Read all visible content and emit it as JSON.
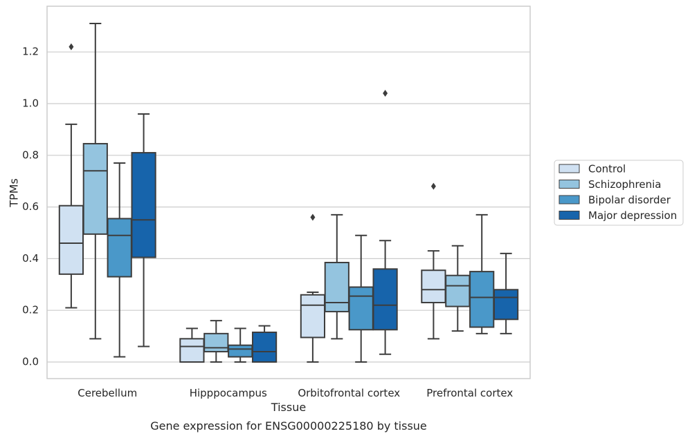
{
  "chart_data": {
    "type": "box",
    "xlabel": "Tissue",
    "ylabel": "TPMs",
    "caption": "Gene expression for ENSG00000225180 by tissue",
    "ylim": [
      -0.065,
      1.385
    ],
    "y_ticks": [
      "0.0",
      "0.2",
      "0.4",
      "0.6",
      "0.8",
      "1.0",
      "1.2"
    ],
    "grid": "horizontal",
    "legend_position": "right",
    "categories": [
      "Cerebellum",
      "Hipppocampus",
      "Orbitofrontal cortex",
      "Prefrontal cortex"
    ],
    "series": [
      {
        "name": "Control",
        "color": "#d0e1f2",
        "boxes": [
          {
            "whisker_low": 0.21,
            "q1": 0.34,
            "median": 0.46,
            "q3": 0.605,
            "whisker_high": 0.92,
            "outliers": [
              1.22
            ]
          },
          {
            "whisker_low": 0.0,
            "q1": 0.0,
            "median": 0.06,
            "q3": 0.09,
            "whisker_high": 0.13,
            "outliers": []
          },
          {
            "whisker_low": 0.0,
            "q1": 0.095,
            "median": 0.22,
            "q3": 0.26,
            "whisker_high": 0.27,
            "outliers": [
              0.56
            ]
          },
          {
            "whisker_low": 0.09,
            "q1": 0.23,
            "median": 0.28,
            "q3": 0.355,
            "whisker_high": 0.43,
            "outliers": [
              0.68
            ]
          }
        ]
      },
      {
        "name": "Schizophrenia",
        "color": "#94c4df",
        "boxes": [
          {
            "whisker_low": 0.09,
            "q1": 0.495,
            "median": 0.74,
            "q3": 0.845,
            "whisker_high": 1.31,
            "outliers": []
          },
          {
            "whisker_low": 0.0,
            "q1": 0.04,
            "median": 0.055,
            "q3": 0.11,
            "whisker_high": 0.16,
            "outliers": []
          },
          {
            "whisker_low": 0.09,
            "q1": 0.195,
            "median": 0.23,
            "q3": 0.385,
            "whisker_high": 0.57,
            "outliers": []
          },
          {
            "whisker_low": 0.12,
            "q1": 0.215,
            "median": 0.295,
            "q3": 0.335,
            "whisker_high": 0.45,
            "outliers": []
          }
        ]
      },
      {
        "name": "Bipolar disorder",
        "color": "#4a98c9",
        "boxes": [
          {
            "whisker_low": 0.02,
            "q1": 0.33,
            "median": 0.49,
            "q3": 0.555,
            "whisker_high": 0.77,
            "outliers": []
          },
          {
            "whisker_low": 0.0,
            "q1": 0.02,
            "median": 0.05,
            "q3": 0.065,
            "whisker_high": 0.13,
            "outliers": []
          },
          {
            "whisker_low": 0.0,
            "q1": 0.125,
            "median": 0.255,
            "q3": 0.29,
            "whisker_high": 0.49,
            "outliers": []
          },
          {
            "whisker_low": 0.11,
            "q1": 0.135,
            "median": 0.25,
            "q3": 0.35,
            "whisker_high": 0.57,
            "outliers": []
          }
        ]
      },
      {
        "name": "Major depression",
        "color": "#1764ab",
        "boxes": [
          {
            "whisker_low": 0.06,
            "q1": 0.405,
            "median": 0.55,
            "q3": 0.81,
            "whisker_high": 0.96,
            "outliers": []
          },
          {
            "whisker_low": 0.0,
            "q1": 0.0,
            "median": 0.04,
            "q3": 0.115,
            "whisker_high": 0.14,
            "outliers": []
          },
          {
            "whisker_low": 0.03,
            "q1": 0.125,
            "median": 0.22,
            "q3": 0.36,
            "whisker_high": 0.47,
            "outliers": [
              1.04
            ]
          },
          {
            "whisker_low": 0.11,
            "q1": 0.165,
            "median": 0.25,
            "q3": 0.28,
            "whisker_high": 0.42,
            "outliers": []
          }
        ]
      }
    ]
  }
}
